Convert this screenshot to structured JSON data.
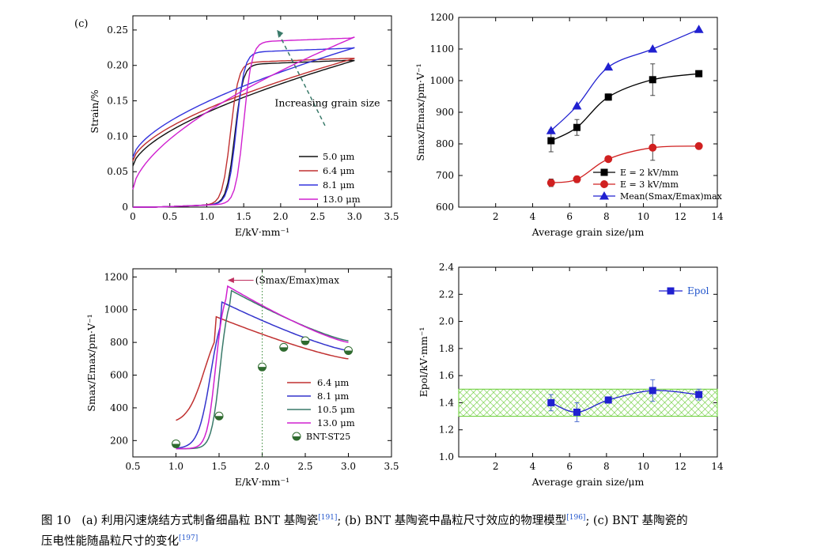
{
  "panel_label": "(c)",
  "caption": {
    "fig_no": "图 10",
    "part_a": "(a) 利用闪速烧结方式制备细晶粒 BNT 基陶瓷",
    "ref_a": "[191]",
    "part_b": "; (b) BNT 基陶瓷中晶粒尺寸效应的物理模型",
    "ref_b": "[196]",
    "part_c": "; (c) BNT 基陶瓷的",
    "line2": "压电性能随晶粒尺寸的变化",
    "ref_c": "[197]"
  },
  "chart_data": [
    {
      "id": "strain",
      "type": "line",
      "title": "",
      "xlabel": "E/kV·mm⁻¹",
      "ylabel": "Strain/%",
      "xlim": [
        0,
        3.5
      ],
      "ylim": [
        0,
        0.27
      ],
      "xticks": [
        "0",
        "0.5",
        "1.0",
        "1.5",
        "2.0",
        "2.5",
        "3.0",
        "3.5"
      ],
      "yticks": [
        "0",
        "0.05",
        "0.10",
        "0.15",
        "0.20",
        "0.25"
      ],
      "annotation": "Increasing grain size",
      "legend_position": "bottom-right",
      "series": [
        {
          "name": "5.0 μm",
          "color": "#111111",
          "Ec": 1.38,
          "Smax": 0.207,
          "S0": 0.058
        },
        {
          "name": "6.4 μm",
          "color": "#c03030",
          "Ec": 1.32,
          "Smax": 0.21,
          "S0": 0.065
        },
        {
          "name": "8.1 μm",
          "color": "#3333dd",
          "Ec": 1.4,
          "Smax": 0.225,
          "S0": 0.07
        },
        {
          "name": "13.0 μm",
          "color": "#d020d0",
          "Ec": 1.5,
          "Smax": 0.24,
          "S0": 0.025
        }
      ]
    },
    {
      "id": "smax_grain",
      "type": "line",
      "xlabel": "Average grain size/μm",
      "ylabel": "Smax/Emax/pm·V⁻¹",
      "xlim": [
        0,
        14
      ],
      "ylim": [
        600,
        1200
      ],
      "xticks": [
        "2",
        "4",
        "6",
        "8",
        "10",
        "12",
        "14"
      ],
      "yticks": [
        "600",
        "700",
        "800",
        "900",
        "1000",
        "1100",
        "1200"
      ],
      "legend_position": "bottom-right",
      "series": [
        {
          "name": "E = 2 kV/mm",
          "color": "#000000",
          "marker": "square",
          "x": [
            5.0,
            6.4,
            8.1,
            10.5,
            13.0
          ],
          "y": [
            810,
            852,
            948,
            1003,
            1022
          ],
          "err": [
            35,
            25,
            10,
            50,
            0
          ]
        },
        {
          "name": "E = 3 kV/mm",
          "color": "#d02020",
          "marker": "circle",
          "x": [
            5.0,
            6.4,
            8.1,
            10.5,
            13.0
          ],
          "y": [
            677,
            688,
            752,
            788,
            793
          ],
          "err": [
            12,
            10,
            0,
            40,
            0
          ]
        },
        {
          "name": "Mean(Smax/Emax)max",
          "color": "#2020d0",
          "marker": "triangle",
          "x": [
            5.0,
            6.4,
            8.1,
            10.5,
            13.0
          ],
          "y": [
            842,
            920,
            1043,
            1100,
            1162
          ],
          "err": [
            0,
            0,
            0,
            0,
            0
          ]
        }
      ]
    },
    {
      "id": "smax_field",
      "type": "line",
      "xlabel": "E/kV·mm⁻¹",
      "ylabel": "Smax/Emax/pm·V⁻¹",
      "xlim": [
        0.5,
        3.5
      ],
      "ylim": [
        100,
        1250
      ],
      "xticks": [
        "0.5",
        "1.0",
        "1.5",
        "2.0",
        "2.5",
        "3.0",
        "3.5"
      ],
      "yticks": [
        "200",
        "400",
        "600",
        "800",
        "1000",
        "1200"
      ],
      "annotation": "(Smax/Emax)max",
      "legend_position": "bottom-right",
      "series": [
        {
          "name": "6.4 μm",
          "color": "#c03030",
          "Ep": 1.45,
          "Smax": 960,
          "Sstart": 300,
          "Send": 700,
          "k": 10
        },
        {
          "name": "8.1 μm",
          "color": "#3333cc",
          "Ep": 1.52,
          "Smax": 1050,
          "Sstart": 150,
          "Send": 750,
          "k": 14
        },
        {
          "name": "10.5 μm",
          "color": "#3a7a6a",
          "Ep": 1.63,
          "Smax": 1120,
          "Sstart": 150,
          "Send": 810,
          "k": 20
        },
        {
          "name": "13.0 μm",
          "color": "#d020d0",
          "Ep": 1.58,
          "Smax": 1150,
          "Sstart": 150,
          "Send": 800,
          "k": 20
        }
      ],
      "scatter": {
        "name": "BNT-ST25",
        "x": [
          1.0,
          1.5,
          2.0,
          2.25,
          2.5,
          3.0
        ],
        "y": [
          180,
          350,
          650,
          770,
          810,
          750
        ]
      },
      "vline_x": 2.0
    },
    {
      "id": "epol",
      "type": "line",
      "xlabel": "Average grain size/μm",
      "ylabel": "Epol/kV·mm⁻¹",
      "xlim": [
        0,
        14
      ],
      "ylim": [
        1.0,
        2.4
      ],
      "xticks": [
        "2",
        "4",
        "6",
        "8",
        "10",
        "12",
        "14"
      ],
      "yticks": [
        "1.0",
        "1.2",
        "1.4",
        "1.6",
        "1.8",
        "2.0",
        "2.2",
        "2.4"
      ],
      "band": [
        1.3,
        1.5
      ],
      "legend_position": "top-right",
      "series": [
        {
          "name": "Epol",
          "color": "#2020d0",
          "marker": "square",
          "x": [
            5.0,
            6.4,
            8.1,
            10.5,
            13.0
          ],
          "y": [
            1.4,
            1.33,
            1.42,
            1.49,
            1.46
          ],
          "err": [
            0.06,
            0.07,
            0.02,
            0.08,
            0.04
          ]
        }
      ]
    }
  ]
}
